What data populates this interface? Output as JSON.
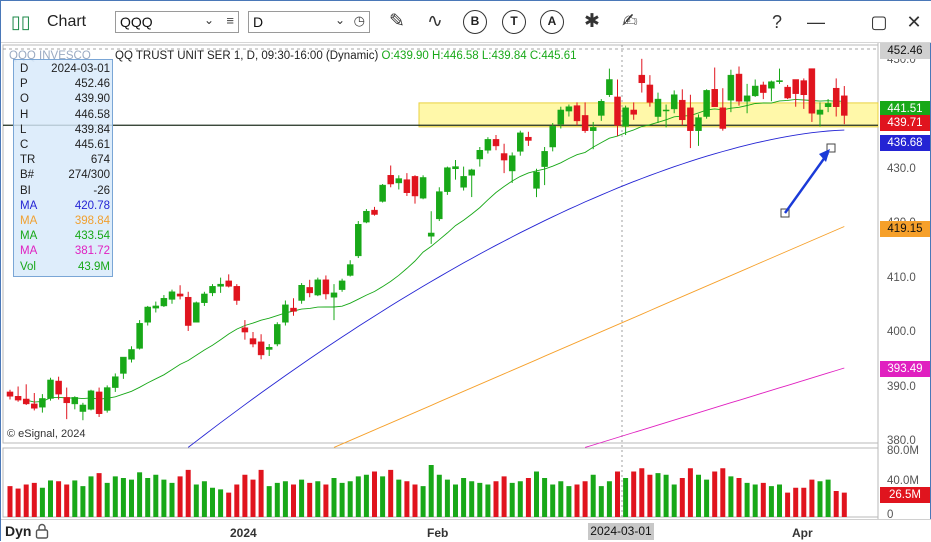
{
  "toolbar": {
    "app_title": "Chart",
    "symbol_value": "QQQ",
    "interval_value": "D",
    "tools": [
      {
        "name": "draw-pen-icon"
      },
      {
        "name": "study-wave-icon"
      },
      {
        "name": "b-circle-icon",
        "letter": "B"
      },
      {
        "name": "t-circle-icon",
        "letter": "T"
      },
      {
        "name": "a-circle-icon",
        "letter": "A"
      },
      {
        "name": "tools-icon"
      },
      {
        "name": "edit-note-icon"
      }
    ],
    "help_label": "?",
    "minimize_label": "—",
    "restore_label": "▢",
    "close_label": "✕"
  },
  "header": {
    "prefix": "QQQ INVESCO",
    "description": "QQ TRUST UNIT SER 1, D, 09:30-16:00 (Dynamic)",
    "ohlc": "O:439.90 H:446.58 L:439.84 C:445.61"
  },
  "infobox": {
    "rows": [
      {
        "k": "D",
        "v": "2024-03-01",
        "color": "#222222"
      },
      {
        "k": "P",
        "v": "452.46",
        "color": "#222222"
      },
      {
        "k": "O",
        "v": "439.90",
        "color": "#222222"
      },
      {
        "k": "H",
        "v": "446.58",
        "color": "#222222"
      },
      {
        "k": "L",
        "v": "439.84",
        "color": "#222222"
      },
      {
        "k": "C",
        "v": "445.61",
        "color": "#222222"
      },
      {
        "k": "TR",
        "v": "674",
        "color": "#222222"
      },
      {
        "k": "B#",
        "v": "274/300",
        "color": "#222222"
      },
      {
        "k": "BI",
        "v": "-26",
        "color": "#222222"
      },
      {
        "k": "MA",
        "v": "420.78",
        "color": "#2424d4"
      },
      {
        "k": "MA",
        "v": "398.84",
        "color": "#f0a030"
      },
      {
        "k": "MA",
        "v": "433.54",
        "color": "#18a818"
      },
      {
        "k": "MA",
        "v": "381.72",
        "color": "#e020c0"
      },
      {
        "k": "Vol",
        "v": "43.9M",
        "color": "#18a818"
      }
    ]
  },
  "copyright": "© eSignal, 2024",
  "price_axis": {
    "ticks": [
      "450.00",
      "440.00",
      "430.00",
      "420.00",
      "410.00",
      "400.00",
      "390.00",
      "380.00"
    ],
    "ticks_short": [
      "450.0",
      "440.0",
      "430.0",
      "420.0",
      "410.0",
      "400.0",
      "390.0",
      "380.0"
    ],
    "badges": [
      {
        "label": "452.46",
        "value": 452.46,
        "bg": "#d0d0d0",
        "fg": "#111111"
      },
      {
        "label": "441.51",
        "value": 441.51,
        "bg": "#18a818",
        "fg": "#ffffff"
      },
      {
        "label": "439.71",
        "value": 439.71,
        "bg": "#e0141e",
        "fg": "#ffffff"
      },
      {
        "label": "436.68",
        "value": 436.68,
        "bg": "#2424d4",
        "fg": "#ffffff"
      },
      {
        "label": "419.15",
        "value": 419.15,
        "bg": "#f6a02a",
        "fg": "#111111"
      },
      {
        "label": "393.49",
        "value": 393.49,
        "bg": "#e020c0",
        "fg": "#ffffff"
      }
    ]
  },
  "volume_axis": {
    "ticks": [
      "80.0M",
      "40.0M",
      "0"
    ],
    "badge": {
      "label": "26.5M",
      "value": 26.5,
      "bg": "#e0141e",
      "fg": "#ffffff"
    }
  },
  "bottom": {
    "dyn_label": "Dyn",
    "x_labels": [
      {
        "label": "2024",
        "index": 14
      },
      {
        "label": "Feb",
        "index": 35
      },
      {
        "label": "Apr",
        "index": 77
      }
    ],
    "cursor_label": "2024-03-01"
  },
  "colors": {
    "up": "#18a818",
    "down": "#e0141e",
    "ma_fast": "#18a818",
    "ma_mid": "#2424d4",
    "ma_slow": "#f6a02a",
    "ma_long": "#e020c0",
    "zone": "#fff7a0",
    "zone_border": "#e8d040",
    "level_line": "#203020",
    "arrow": "#1a3ad8"
  },
  "chart_data": {
    "type": "candlestick",
    "symbol": "QQQ",
    "interval": "D",
    "y_range": [
      380,
      452.46
    ],
    "volume_range_millions": [
      0,
      80
    ],
    "support_level": 438.2,
    "resistance_zone": [
      437.9,
      442.3
    ],
    "cursor_index": 54,
    "candles": [
      [
        389.2,
        389.6,
        387.8,
        388.4,
        38
      ],
      [
        388.4,
        390.2,
        387.4,
        387.7,
        35
      ],
      [
        387.9,
        390.6,
        386.8,
        387.0,
        40
      ],
      [
        387.0,
        389.0,
        385.8,
        386.2,
        42
      ],
      [
        386.4,
        388.8,
        385.4,
        388.0,
        36
      ],
      [
        388.0,
        391.8,
        387.6,
        391.4,
        45
      ],
      [
        391.2,
        392.0,
        387.8,
        388.8,
        44
      ],
      [
        388.2,
        390.0,
        384.2,
        387.2,
        40
      ],
      [
        387.0,
        388.4,
        386.0,
        388.2,
        45
      ],
      [
        385.6,
        387.2,
        384.0,
        386.8,
        38
      ],
      [
        386.0,
        389.6,
        385.8,
        389.4,
        50
      ],
      [
        389.2,
        390.0,
        384.6,
        385.2,
        54
      ],
      [
        385.8,
        390.4,
        385.4,
        390.0,
        42
      ],
      [
        390.0,
        392.6,
        389.2,
        392.0,
        50
      ],
      [
        392.6,
        395.4,
        391.6,
        395.6,
        48
      ],
      [
        395.2,
        397.6,
        394.6,
        397.0,
        46
      ],
      [
        397.2,
        402.4,
        397.0,
        401.8,
        55
      ],
      [
        402.0,
        405.0,
        401.4,
        404.8,
        48
      ],
      [
        404.6,
        405.8,
        403.8,
        405.0,
        52
      ],
      [
        405.0,
        407.0,
        404.8,
        406.4,
        46
      ],
      [
        406.2,
        408.0,
        405.4,
        407.6,
        42
      ],
      [
        407.2,
        408.8,
        406.2,
        406.8,
        50
      ],
      [
        406.6,
        407.6,
        400.4,
        401.4,
        58
      ],
      [
        402.0,
        405.8,
        402.0,
        405.6,
        40
      ],
      [
        405.6,
        407.6,
        405.0,
        407.2,
        44
      ],
      [
        407.4,
        409.0,
        406.8,
        408.6,
        36
      ],
      [
        408.6,
        410.2,
        407.4,
        409.0,
        34
      ],
      [
        409.6,
        410.8,
        408.4,
        408.6,
        30
      ],
      [
        408.6,
        409.0,
        405.2,
        406.0,
        40
      ],
      [
        401.0,
        402.4,
        398.8,
        400.2,
        52
      ],
      [
        399.0,
        400.2,
        397.4,
        398.0,
        46
      ],
      [
        398.4,
        399.8,
        395.2,
        396.0,
        58
      ],
      [
        397.0,
        398.0,
        395.8,
        397.4,
        38
      ],
      [
        398.0,
        402.0,
        397.6,
        401.6,
        42
      ],
      [
        402.0,
        406.0,
        401.4,
        405.2,
        44
      ],
      [
        404.6,
        406.4,
        403.2,
        404.0,
        40
      ],
      [
        406.0,
        409.2,
        405.4,
        408.8,
        46
      ],
      [
        408.4,
        409.8,
        406.6,
        407.4,
        42
      ],
      [
        407.0,
        410.2,
        406.8,
        409.8,
        44
      ],
      [
        409.8,
        410.6,
        406.2,
        407.2,
        40
      ],
      [
        406.6,
        409.0,
        402.4,
        407.4,
        48
      ],
      [
        408.0,
        410.0,
        407.6,
        409.6,
        42
      ],
      [
        410.6,
        413.4,
        410.4,
        412.6,
        44
      ],
      [
        414.2,
        420.6,
        413.8,
        420.0,
        50
      ],
      [
        420.4,
        422.8,
        420.2,
        422.4,
        52
      ],
      [
        422.6,
        423.2,
        421.6,
        421.8,
        56
      ],
      [
        424.2,
        427.4,
        424.0,
        427.2,
        50
      ],
      [
        429.0,
        430.8,
        426.8,
        427.4,
        58
      ],
      [
        427.6,
        429.0,
        426.4,
        428.4,
        46
      ],
      [
        428.2,
        429.4,
        425.2,
        425.8,
        44
      ],
      [
        428.8,
        429.0,
        423.8,
        425.2,
        40
      ],
      [
        424.8,
        429.0,
        424.6,
        428.6,
        38
      ],
      [
        417.8,
        422.4,
        416.4,
        418.4,
        64
      ],
      [
        421.0,
        426.8,
        420.6,
        426.0,
        52
      ],
      [
        426.0,
        430.6,
        425.4,
        430.4,
        46
      ],
      [
        430.2,
        431.8,
        428.2,
        430.6,
        40
      ],
      [
        426.8,
        430.6,
        426.2,
        428.8,
        48
      ],
      [
        429.0,
        430.2,
        425.0,
        430.0,
        44
      ],
      [
        432.0,
        434.2,
        430.6,
        433.6,
        42
      ],
      [
        433.6,
        436.0,
        433.0,
        435.6,
        40
      ],
      [
        435.6,
        436.4,
        433.6,
        434.4,
        44
      ],
      [
        433.0,
        434.8,
        429.4,
        431.8,
        50
      ],
      [
        429.8,
        433.2,
        427.6,
        432.6,
        42
      ],
      [
        433.4,
        437.2,
        432.6,
        436.8,
        44
      ],
      [
        436.0,
        437.0,
        434.4,
        435.4,
        48
      ],
      [
        426.6,
        430.2,
        425.0,
        429.6,
        56
      ],
      [
        430.6,
        434.2,
        427.2,
        433.4,
        48
      ],
      [
        434.2,
        438.6,
        433.4,
        438.0,
        40
      ],
      [
        438.4,
        441.6,
        437.6,
        441.0,
        44
      ],
      [
        440.8,
        442.0,
        439.8,
        441.6,
        38
      ],
      [
        441.8,
        442.4,
        438.2,
        439.0,
        40
      ],
      [
        440.0,
        442.4,
        436.8,
        437.2,
        44
      ],
      [
        437.2,
        438.8,
        433.8,
        437.8,
        52
      ],
      [
        440.0,
        443.0,
        439.0,
        442.6,
        38
      ],
      [
        443.8,
        448.6,
        443.4,
        446.6,
        44
      ],
      [
        443.4,
        446.6,
        436.2,
        438.2,
        56
      ],
      [
        438.0,
        441.8,
        436.4,
        441.4,
        48
      ],
      [
        441.0,
        442.4,
        439.2,
        440.2,
        56
      ],
      [
        447.4,
        450.4,
        444.2,
        446.0,
        60
      ],
      [
        445.6,
        447.4,
        441.6,
        442.4,
        52
      ],
      [
        439.8,
        444.2,
        438.6,
        443.0,
        54
      ],
      [
        441.0,
        442.0,
        437.8,
        441.0,
        52
      ],
      [
        441.2,
        444.6,
        440.4,
        443.8,
        40
      ],
      [
        442.8,
        444.8,
        438.2,
        439.2,
        48
      ],
      [
        441.4,
        443.8,
        434.0,
        437.2,
        60
      ],
      [
        437.2,
        440.2,
        434.4,
        439.6,
        52
      ],
      [
        439.8,
        444.8,
        439.4,
        444.6,
        46
      ],
      [
        444.8,
        448.8,
        441.8,
        441.6,
        56
      ],
      [
        441.4,
        445.0,
        437.2,
        437.6,
        60
      ],
      [
        442.8,
        448.4,
        440.6,
        447.4,
        50
      ],
      [
        447.6,
        449.0,
        441.8,
        442.6,
        48
      ],
      [
        442.6,
        445.8,
        440.4,
        443.6,
        42
      ],
      [
        443.6,
        446.6,
        443.4,
        445.4,
        40
      ],
      [
        445.6,
        446.2,
        443.0,
        444.2,
        42
      ],
      [
        445.0,
        446.4,
        442.6,
        446.2,
        38
      ],
      [
        446.2,
        448.6,
        445.8,
        446.4,
        40
      ],
      [
        445.2,
        445.6,
        443.0,
        443.2,
        30
      ],
      [
        446.6,
        446.6,
        441.6,
        444.0,
        36
      ],
      [
        446.4,
        446.8,
        441.2,
        443.8,
        36
      ],
      [
        448.6,
        448.6,
        438.8,
        440.4,
        46
      ],
      [
        440.2,
        442.4,
        438.0,
        441.0,
        44
      ],
      [
        441.6,
        443.0,
        440.6,
        442.2,
        46
      ],
      [
        445.0,
        446.8,
        439.8,
        441.6,
        32
      ],
      [
        443.6,
        445.4,
        438.4,
        440.0,
        30
      ]
    ]
  }
}
